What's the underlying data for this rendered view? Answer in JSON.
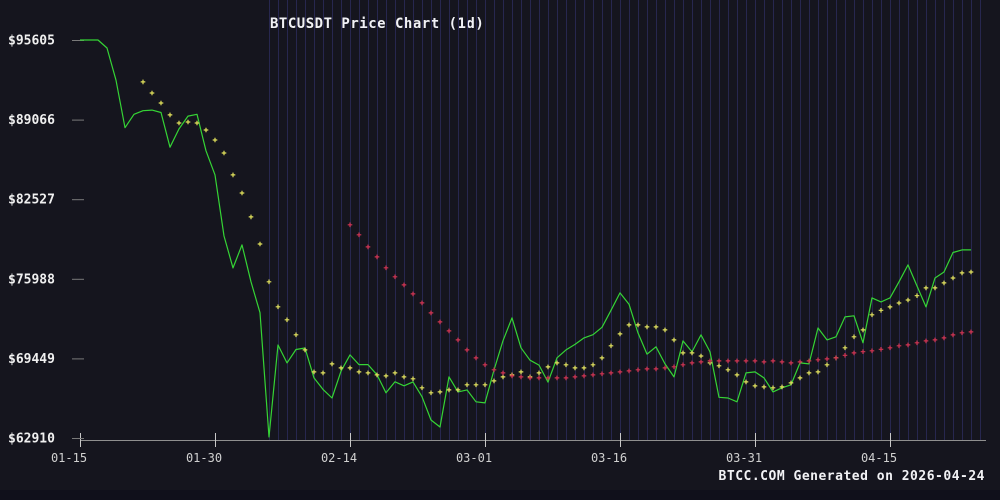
{
  "footer": {
    "watermark": "BTCC.COM Generated on 2026-04-24"
  },
  "chart_data": {
    "type": "line",
    "title": "BTCUSDT Price Chart (1d)",
    "xlabel": "",
    "ylabel": "",
    "x_tick_labels": [
      "01-15",
      "01-30",
      "02-14",
      "03-01",
      "03-16",
      "03-31",
      "04-15"
    ],
    "x_tick_days": [
      0,
      15,
      30,
      45,
      60,
      75,
      90
    ],
    "y_tick_labels": [
      "$95605",
      "$89066",
      "$82527",
      "$75988",
      "$69449",
      "$62910"
    ],
    "y_tick_values": [
      95605,
      89066,
      82527,
      75988,
      69449,
      62910
    ],
    "ylim": [
      62910,
      95605
    ],
    "x_total_days": 100,
    "grid": {
      "vertical_daily": true,
      "start_day": 21,
      "end_day": 100,
      "horizontal": false
    },
    "legend": "none",
    "colors": {
      "background": "#15151e",
      "grid": "#2a2a58",
      "axis": "#8f8f8f",
      "x_tick": "#c8c8c8",
      "y_dash": "#7a7a7a",
      "tick_label": "#d0d0d0",
      "y_label": "#f0f0f0",
      "price_line": "#35d435",
      "ma_fast_dots": "#e3e35c",
      "ma_slow_dots": "#d23450"
    },
    "series": [
      {
        "name": "price",
        "style": "line",
        "color": "#35d435",
        "start_day": 0,
        "values": [
          95605,
          95605,
          95605,
          94950,
          92300,
          88400,
          89500,
          89800,
          89850,
          89650,
          86800,
          88300,
          89350,
          89500,
          86500,
          84520,
          79500,
          76880,
          78770,
          75740,
          73200,
          62990,
          70550,
          69080,
          70180,
          70300,
          67850,
          66900,
          66200,
          68400,
          69740,
          68940,
          68940,
          68100,
          66620,
          67530,
          67200,
          67520,
          66300,
          64390,
          63815,
          67930,
          66700,
          66860,
          65880,
          65790,
          68500,
          70900,
          72780,
          70320,
          69300,
          68900,
          67500,
          69500,
          70150,
          70600,
          71130,
          71400,
          72000,
          73400,
          74830,
          73900,
          71540,
          69800,
          70400,
          69000,
          67930,
          70890,
          69980,
          71380,
          69980,
          66250,
          66200,
          65880,
          68260,
          68340,
          67850,
          66700,
          67030,
          67280,
          69080,
          69000,
          71950,
          70970,
          71220,
          72860,
          72950,
          70730,
          74420,
          74090,
          74420,
          75740,
          77130,
          75400,
          73680,
          76050,
          76550,
          78150,
          78360,
          78360
        ]
      },
      {
        "name": "ma-fast",
        "style": "plus-dots",
        "color": "#e3e35c",
        "start_day": 7,
        "values": [
          92160,
          91250,
          90430,
          89450,
          88790,
          88870,
          88790,
          88210,
          87390,
          86320,
          84520,
          83040,
          81070,
          78850,
          75740,
          73690,
          72620,
          71390,
          70150,
          68340,
          68260,
          69000,
          68670,
          68670,
          68340,
          68260,
          68090,
          68010,
          68260,
          67930,
          67770,
          67030,
          66620,
          66700,
          66860,
          66860,
          67280,
          67280,
          67280,
          67600,
          67930,
          68090,
          68340,
          67930,
          68260,
          68750,
          69080,
          68920,
          68670,
          68670,
          68920,
          69490,
          70480,
          71460,
          72200,
          72200,
          72040,
          72040,
          71790,
          70970,
          69900,
          69900,
          69650,
          69080,
          68840,
          68510,
          68090,
          67520,
          67190,
          67110,
          67030,
          67110,
          67440,
          67850,
          68260,
          68340,
          68920,
          69490,
          70320,
          71220,
          71790,
          73030,
          73400,
          73680,
          74000,
          74250,
          74600,
          75240,
          75240,
          75650,
          76050,
          76470,
          76550
        ]
      },
      {
        "name": "ma-slow",
        "style": "plus-dots",
        "color": "#d23450",
        "start_day": 30,
        "values": [
          80420,
          79600,
          78610,
          77790,
          76890,
          76150,
          75490,
          74750,
          74010,
          73190,
          72450,
          71710,
          70970,
          70150,
          69490,
          68920,
          68510,
          68260,
          68010,
          67930,
          67850,
          67850,
          67850,
          67850,
          67850,
          67930,
          68010,
          68090,
          68180,
          68260,
          68340,
          68420,
          68510,
          68590,
          68590,
          68670,
          68760,
          68920,
          69080,
          69160,
          69240,
          69240,
          69240,
          69240,
          69240,
          69240,
          69160,
          69240,
          69160,
          69080,
          69160,
          69240,
          69330,
          69410,
          69490,
          69700,
          69900,
          70000,
          70070,
          70200,
          70320,
          70480,
          70560,
          70730,
          70890,
          70970,
          71130,
          71380,
          71550,
          71630
        ]
      }
    ]
  }
}
